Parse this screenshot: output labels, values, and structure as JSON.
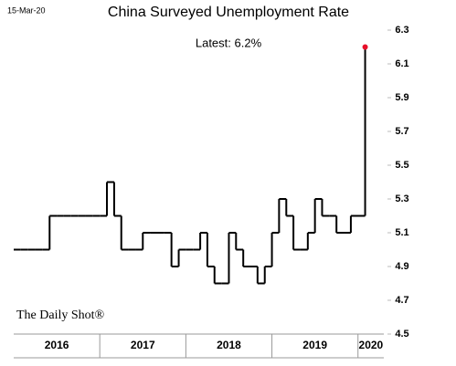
{
  "date_stamp": "15-Mar-20",
  "source": "The Daily Shot®",
  "chart_data": {
    "type": "step",
    "title": "China Surveyed Unemployment Rate",
    "annotation": "Latest:  6.2%",
    "color": "#000000",
    "last_point_color": "#e8102a",
    "x": [
      2016.0,
      2016.083,
      2016.167,
      2016.25,
      2016.333,
      2016.417,
      2016.5,
      2016.583,
      2016.667,
      2016.75,
      2016.833,
      2016.917,
      2017.0,
      2017.083,
      2017.167,
      2017.25,
      2017.333,
      2017.417,
      2017.5,
      2017.583,
      2017.667,
      2017.75,
      2017.833,
      2017.917,
      2018.0,
      2018.083,
      2018.167,
      2018.25,
      2018.333,
      2018.417,
      2018.5,
      2018.583,
      2018.667,
      2018.75,
      2018.833,
      2018.917,
      2019.0,
      2019.083,
      2019.167,
      2019.25,
      2019.333,
      2019.417,
      2019.5,
      2019.583,
      2019.667,
      2019.75,
      2019.833,
      2019.917,
      2020.083
    ],
    "values": [
      5.0,
      5.0,
      5.0,
      5.0,
      5.0,
      5.2,
      5.2,
      5.2,
      5.2,
      5.2,
      5.2,
      5.2,
      5.2,
      5.4,
      5.2,
      5.0,
      5.0,
      5.0,
      5.1,
      5.1,
      5.1,
      5.1,
      4.9,
      5.0,
      5.0,
      5.0,
      5.1,
      4.9,
      4.8,
      4.8,
      5.1,
      5.0,
      4.9,
      4.9,
      4.8,
      4.9,
      5.1,
      5.3,
      5.2,
      5.0,
      5.0,
      5.1,
      5.3,
      5.2,
      5.2,
      5.1,
      5.1,
      5.2,
      6.2
    ],
    "xlim": [
      2016.0,
      2020.3
    ],
    "xticks": [
      2016,
      2017,
      2018,
      2019,
      2020
    ],
    "ylim": [
      4.5,
      6.3
    ],
    "yticks": [
      4.5,
      4.7,
      4.9,
      5.1,
      5.3,
      5.5,
      5.7,
      5.9,
      6.1,
      6.3
    ]
  }
}
